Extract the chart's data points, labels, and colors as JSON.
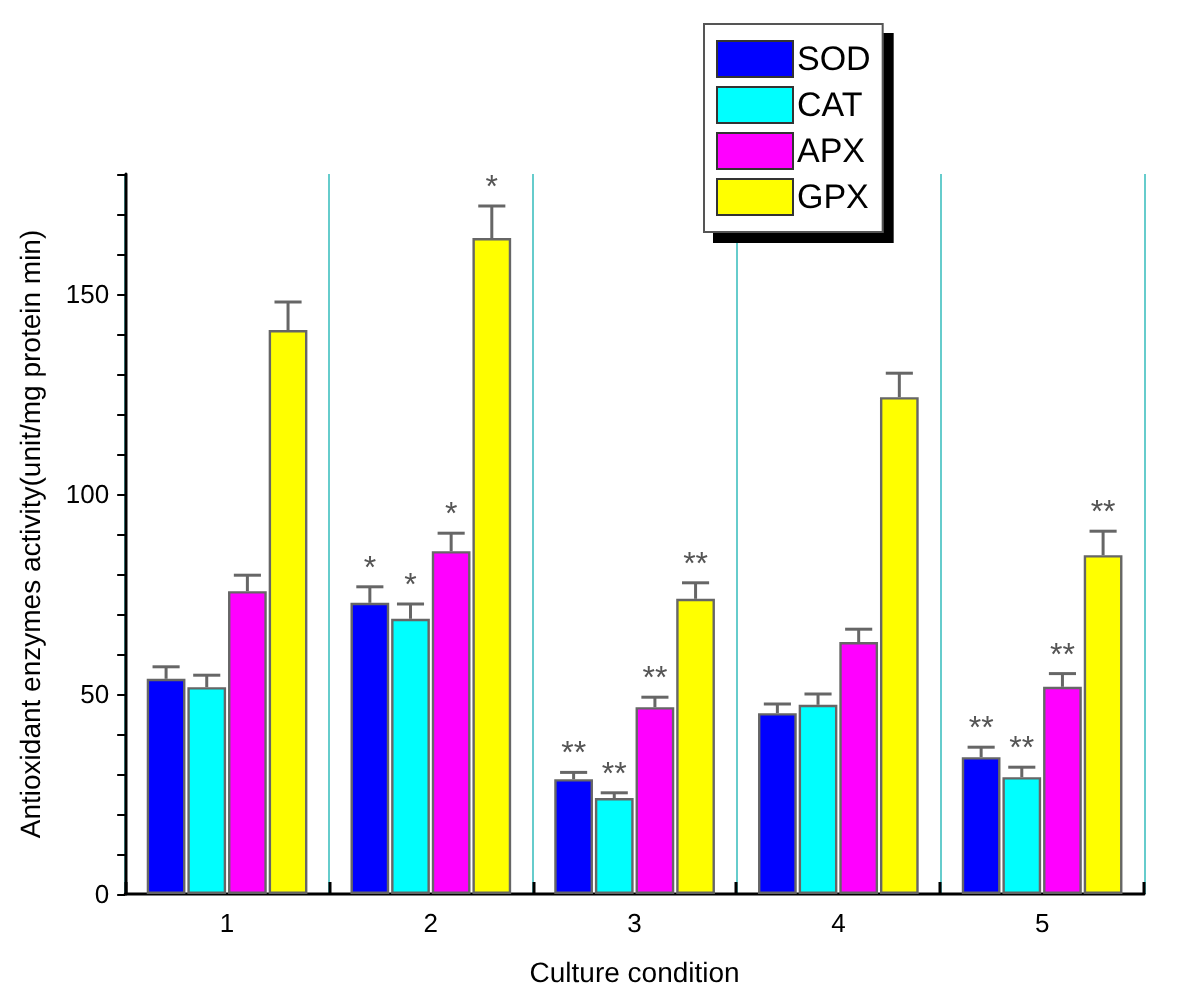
{
  "chart_data": {
    "type": "bar",
    "xlabel": "Culture condition",
    "ylabel": "Antioxidant enzymes activity(unit/mg protein min)",
    "categories": [
      "1",
      "2",
      "3",
      "4",
      "5"
    ],
    "series": [
      {
        "name": "SOD",
        "color": "#0000ff",
        "values": [
          53.8,
          72.8,
          28.7,
          45.2,
          34.2
        ],
        "errors": [
          3,
          4,
          1.7,
          2.3,
          2.5
        ],
        "value_labels": [
          null,
          "*",
          "**",
          null,
          "**"
        ]
      },
      {
        "name": "CAT",
        "color": "#00ffff",
        "values": [
          51.7,
          68.8,
          24,
          47.3,
          29.2
        ],
        "errors": [
          3,
          3.7,
          1.3,
          2.7,
          2.5
        ],
        "value_labels": [
          null,
          "*",
          "**",
          null,
          "**"
        ]
      },
      {
        "name": "APX",
        "color": "#ff00ff",
        "values": [
          75.7,
          85.7,
          46.7,
          63,
          51.8
        ],
        "errors": [
          4,
          4.5,
          2.5,
          3.2,
          3.3
        ],
        "value_labels": [
          null,
          "*",
          "**",
          null,
          "**"
        ]
      },
      {
        "name": "GPX",
        "color": "#ffff00",
        "values": [
          141,
          164,
          73.8,
          124.2,
          84.7
        ],
        "errors": [
          7,
          8,
          4,
          6,
          6
        ],
        "value_labels": [
          null,
          "*",
          "**",
          null,
          "**"
        ]
      }
    ],
    "ylim": [
      0,
      180
    ],
    "yticks": [
      0,
      {
        "value": 10,
        "label": null
      },
      {
        "value": 20,
        "label": null
      },
      {
        "value": 30,
        "label": null
      },
      {
        "value": 40,
        "label": null
      },
      50,
      {
        "value": 60,
        "label": null
      },
      {
        "value": 70,
        "label": null
      },
      {
        "value": 80,
        "label": null
      },
      {
        "value": 90,
        "label": null
      },
      100,
      {
        "value": 110,
        "label": null
      },
      {
        "value": 120,
        "label": null
      },
      {
        "value": 130,
        "label": null
      },
      {
        "value": 140,
        "label": null
      },
      150,
      {
        "value": 160,
        "label": null
      },
      {
        "value": 170,
        "label": null
      },
      {
        "value": 180,
        "label": null
      }
    ],
    "grid": "x",
    "legend": "top right"
  }
}
